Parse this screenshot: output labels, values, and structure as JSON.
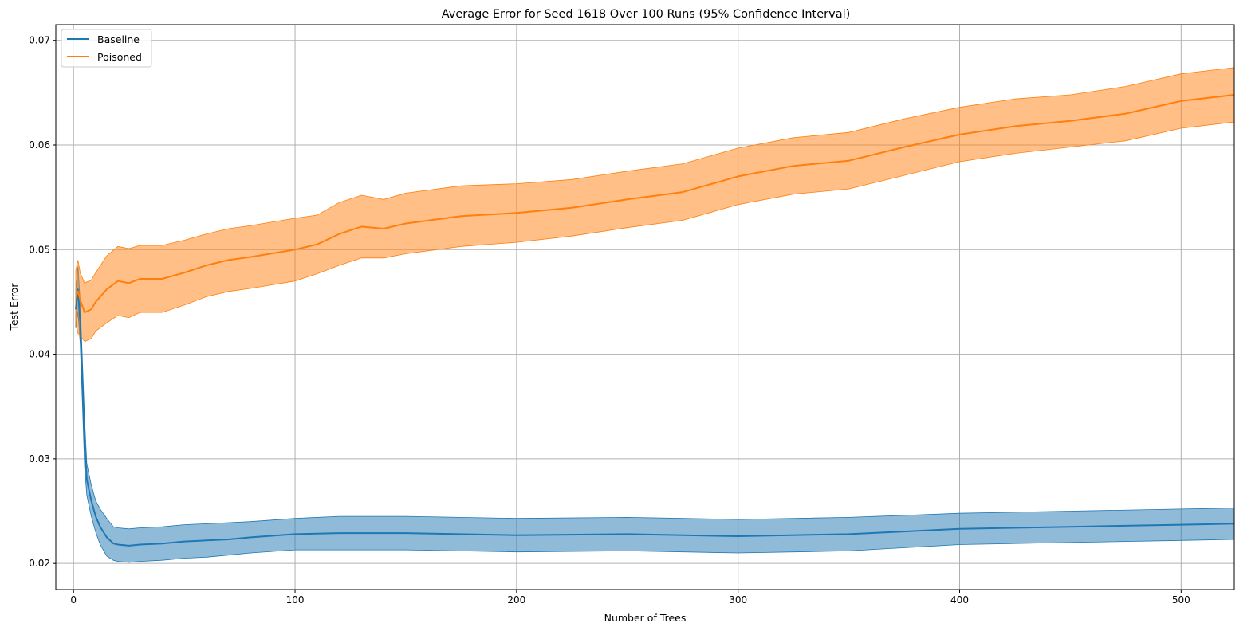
{
  "chart_data": {
    "type": "line",
    "title": "Average Error for Seed 1618 Over 100 Runs (95% Confidence Interval)",
    "xlabel": "Number of Trees",
    "ylabel": "Test Error",
    "xlim": [
      -8,
      524
    ],
    "ylim": [
      0.0175,
      0.0715
    ],
    "x_ticks": [
      0,
      100,
      200,
      300,
      400,
      500
    ],
    "y_ticks": [
      0.02,
      0.03,
      0.04,
      0.05,
      0.06,
      0.07
    ],
    "grid": true,
    "legend_position": "top-left",
    "series": [
      {
        "name": "Baseline",
        "color": "#1f77b4",
        "band_color": "#1f77b4",
        "x": [
          1,
          2,
          3,
          4,
          5,
          6,
          8,
          10,
          12,
          15,
          18,
          20,
          25,
          30,
          40,
          50,
          60,
          70,
          80,
          100,
          120,
          150,
          200,
          250,
          300,
          350,
          400,
          450,
          500,
          524
        ],
        "mean": [
          0.0443,
          0.0462,
          0.043,
          0.0375,
          0.0315,
          0.028,
          0.026,
          0.0245,
          0.0235,
          0.0225,
          0.0219,
          0.0218,
          0.0217,
          0.0218,
          0.0219,
          0.0221,
          0.0222,
          0.0223,
          0.0225,
          0.0228,
          0.0229,
          0.0229,
          0.0227,
          0.0228,
          0.0226,
          0.0228,
          0.0233,
          0.0235,
          0.0237,
          0.0238
        ],
        "lower": [
          0.0425,
          0.044,
          0.041,
          0.0355,
          0.0292,
          0.0265,
          0.0245,
          0.023,
          0.0218,
          0.0207,
          0.0203,
          0.0202,
          0.0201,
          0.0202,
          0.0203,
          0.0205,
          0.0206,
          0.0208,
          0.021,
          0.0213,
          0.0213,
          0.0213,
          0.0211,
          0.0212,
          0.021,
          0.0212,
          0.0218,
          0.022,
          0.0222,
          0.0223
        ],
        "upper": [
          0.0461,
          0.0484,
          0.045,
          0.0395,
          0.0338,
          0.0295,
          0.0275,
          0.026,
          0.0252,
          0.0243,
          0.0235,
          0.0234,
          0.0233,
          0.0234,
          0.0235,
          0.0237,
          0.0238,
          0.0239,
          0.024,
          0.0243,
          0.0245,
          0.0245,
          0.0243,
          0.0244,
          0.0242,
          0.0244,
          0.0248,
          0.025,
          0.0252,
          0.0253
        ]
      },
      {
        "name": "Poisoned",
        "color": "#ff7f0e",
        "band_color": "#ff7f0e",
        "x": [
          1,
          2,
          3,
          5,
          8,
          10,
          15,
          20,
          25,
          30,
          40,
          50,
          60,
          70,
          80,
          100,
          110,
          120,
          130,
          140,
          150,
          175,
          200,
          225,
          250,
          275,
          300,
          325,
          350,
          375,
          400,
          425,
          450,
          475,
          500,
          524
        ],
        "mean": [
          0.0455,
          0.046,
          0.0452,
          0.044,
          0.0443,
          0.045,
          0.0462,
          0.047,
          0.0468,
          0.0472,
          0.0472,
          0.0478,
          0.0485,
          0.049,
          0.0493,
          0.05,
          0.0505,
          0.0515,
          0.0522,
          0.052,
          0.0525,
          0.0532,
          0.0535,
          0.054,
          0.0548,
          0.0555,
          0.057,
          0.058,
          0.0585,
          0.0598,
          0.061,
          0.0618,
          0.0623,
          0.063,
          0.0642,
          0.0648
        ],
        "lower": [
          0.043,
          0.042,
          0.0418,
          0.0412,
          0.0415,
          0.0422,
          0.043,
          0.0437,
          0.0435,
          0.044,
          0.044,
          0.0447,
          0.0455,
          0.046,
          0.0463,
          0.047,
          0.0477,
          0.0485,
          0.0492,
          0.0492,
          0.0496,
          0.0503,
          0.0507,
          0.0513,
          0.0521,
          0.0528,
          0.0543,
          0.0553,
          0.0558,
          0.0571,
          0.0584,
          0.0592,
          0.0598,
          0.0604,
          0.0616,
          0.0622
        ],
        "upper": [
          0.048,
          0.049,
          0.0478,
          0.0468,
          0.0471,
          0.0478,
          0.0494,
          0.0503,
          0.0501,
          0.0504,
          0.0504,
          0.0509,
          0.0515,
          0.052,
          0.0523,
          0.053,
          0.0533,
          0.0545,
          0.0552,
          0.0548,
          0.0554,
          0.0561,
          0.0563,
          0.0567,
          0.0575,
          0.0582,
          0.0597,
          0.0607,
          0.0612,
          0.0625,
          0.0636,
          0.0644,
          0.0648,
          0.0656,
          0.0668,
          0.0674
        ]
      }
    ]
  }
}
